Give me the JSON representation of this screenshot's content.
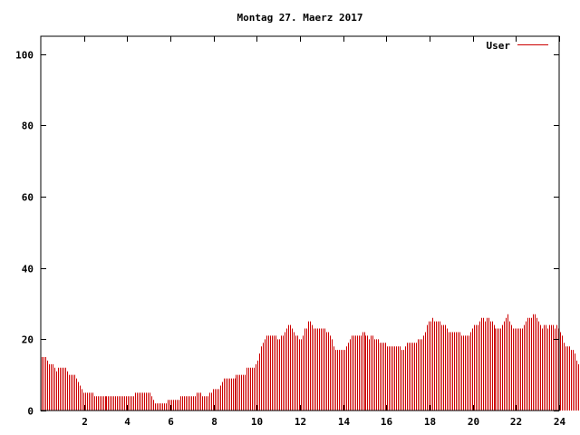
{
  "chart_data": {
    "type": "bar",
    "title": "Montag 27. Maerz 2017",
    "xlabel": "",
    "ylabel": "",
    "xlim": [
      0,
      24
    ],
    "ylim": [
      0,
      105
    ],
    "x_ticks": [
      2,
      4,
      6,
      8,
      10,
      12,
      14,
      16,
      18,
      20,
      22,
      24
    ],
    "y_ticks": [
      0,
      20,
      40,
      60,
      80,
      100
    ],
    "grid": false,
    "legend": "top-right",
    "x_step_minutes": 5,
    "series": [
      {
        "name": "User",
        "color": "#cc0000",
        "values": [
          15,
          15,
          15,
          14,
          13,
          13,
          13,
          12,
          11,
          12,
          12,
          12,
          12,
          12,
          11,
          10,
          10,
          10,
          10,
          9,
          8,
          7,
          6,
          5,
          5,
          5,
          5,
          5,
          5,
          4,
          4,
          4,
          4,
          4,
          4,
          4,
          4,
          4,
          4,
          4,
          4,
          4,
          4,
          4,
          4,
          4,
          4,
          4,
          4,
          4,
          4,
          4,
          5,
          5,
          5,
          5,
          5,
          5,
          5,
          5,
          5,
          4,
          3,
          2,
          2,
          2,
          2,
          2,
          2,
          2,
          3,
          3,
          3,
          3,
          3,
          3,
          3,
          4,
          4,
          4,
          4,
          4,
          4,
          4,
          4,
          4,
          5,
          5,
          5,
          4,
          4,
          4,
          4,
          5,
          5,
          6,
          6,
          6,
          6,
          7,
          8,
          9,
          9,
          9,
          9,
          9,
          9,
          9,
          10,
          10,
          10,
          10,
          10,
          10,
          12,
          12,
          12,
          12,
          12,
          13,
          14,
          16,
          18,
          19,
          20,
          21,
          21,
          21,
          21,
          21,
          21,
          20,
          20,
          21,
          21,
          22,
          23,
          24,
          24,
          23,
          22,
          21,
          21,
          20,
          20,
          21,
          23,
          23,
          25,
          25,
          24,
          23,
          23,
          23,
          23,
          23,
          23,
          23,
          22,
          22,
          21,
          20,
          18,
          17,
          17,
          17,
          17,
          17,
          17,
          18,
          19,
          20,
          21,
          21,
          21,
          21,
          21,
          21,
          22,
          22,
          21,
          21,
          20,
          21,
          21,
          20,
          20,
          20,
          19,
          19,
          19,
          19,
          18,
          18,
          18,
          18,
          18,
          18,
          18,
          18,
          17,
          17,
          18,
          19,
          19,
          19,
          19,
          19,
          19,
          20,
          20,
          20,
          21,
          22,
          24,
          25,
          25,
          26,
          25,
          25,
          25,
          25,
          24,
          24,
          24,
          23,
          22,
          22,
          22,
          22,
          22,
          22,
          22,
          21,
          21,
          21,
          21,
          21,
          22,
          23,
          24,
          24,
          24,
          25,
          26,
          26,
          25,
          26,
          26,
          25,
          25,
          24,
          23,
          23,
          23,
          23,
          24,
          25,
          26,
          27,
          25,
          24,
          23,
          23,
          23,
          23,
          23,
          23,
          24,
          25,
          26,
          26,
          26,
          27,
          27,
          26,
          25,
          24,
          23,
          24,
          24,
          23,
          24,
          24,
          24,
          23,
          24,
          23,
          22,
          21,
          19,
          18,
          18,
          18,
          17,
          17,
          16,
          14,
          13,
          12,
          13
        ]
      }
    ]
  }
}
